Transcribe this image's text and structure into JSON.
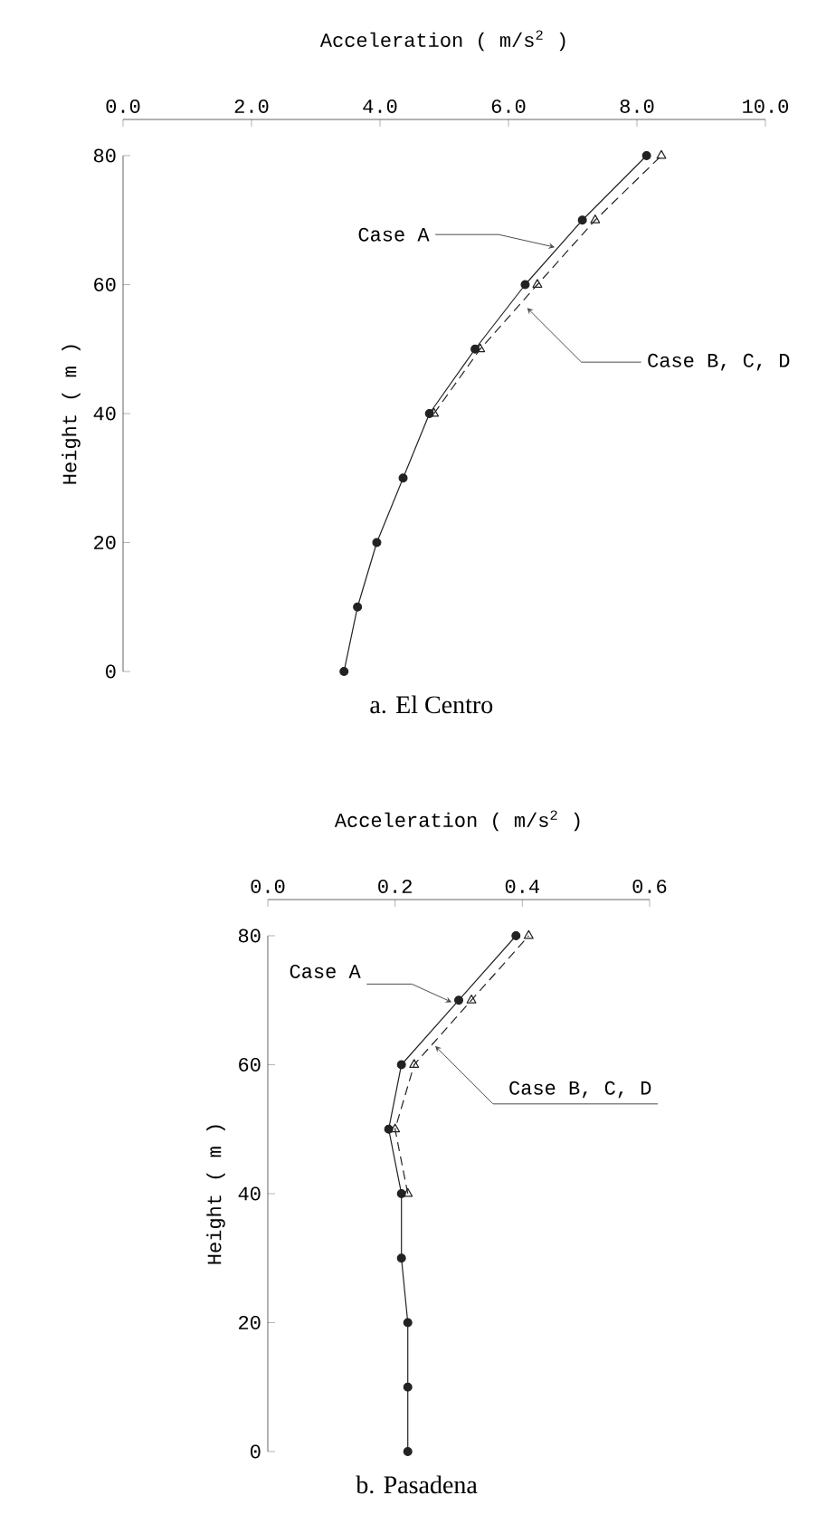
{
  "chart_data": [
    {
      "type": "line",
      "title": "a. El Centro",
      "xlabel": "Acceleration ( m/s$^{2}$ )",
      "ylabel": "Height ( m )",
      "xlim": [
        0,
        10
      ],
      "xticks": [
        {
          "value": 0,
          "label": "0.0"
        },
        {
          "value": 2,
          "label": "2.0"
        },
        {
          "value": 4,
          "label": "4.0"
        },
        {
          "value": 6,
          "label": "6.0"
        },
        {
          "value": 8,
          "label": "8.0"
        },
        {
          "value": 10,
          "label": "10.0"
        }
      ],
      "ylim": [
        0,
        80
      ],
      "yticks": [
        0,
        20,
        40,
        60,
        80
      ],
      "series": [
        {
          "color": "#222222",
          "marker": "circle",
          "line_style": "solid",
          "x": [
            3.44,
            3.65,
            3.95,
            4.36,
            4.77,
            5.48,
            6.26,
            7.15,
            8.15
          ],
          "values": [
            0,
            10,
            20,
            30,
            40,
            50,
            60,
            70,
            80
          ]
        },
        {
          "color": "#222222",
          "marker": "triangle",
          "line_style": "dashed",
          "x": [
            4.84,
            5.56,
            6.45,
            7.35,
            8.38
          ],
          "values": [
            40,
            50,
            60,
            70,
            80
          ]
        }
      ],
      "annotations": [
        {
          "text": "Case A",
          "x": 6.72,
          "y": 65.8
        },
        {
          "text": "Case B, C, D",
          "x": 6.29,
          "y": 56.4
        }
      ]
    },
    {
      "type": "line",
      "title": "b. Pasadena",
      "xlabel": "Acceleration ( m/s$^{2}$ )",
      "ylabel": "Height ( m )",
      "xlim": [
        0,
        0.6
      ],
      "xticks": [
        {
          "value": 0,
          "label": "0.0"
        },
        {
          "value": 0.2,
          "label": "0.2"
        },
        {
          "value": 0.4,
          "label": "0.4"
        },
        {
          "value": 0.6,
          "label": "0.6"
        }
      ],
      "ylim": [
        0,
        80
      ],
      "yticks": [
        0,
        20,
        40,
        60,
        80
      ],
      "series": [
        {
          "color": "#222222",
          "marker": "circle",
          "line_style": "solid",
          "x": [
            0.22,
            0.22,
            0.22,
            0.21,
            0.21,
            0.19,
            0.21,
            0.3,
            0.39
          ],
          "values": [
            0,
            10,
            20,
            30,
            40,
            50,
            60,
            70,
            80
          ]
        },
        {
          "color": "#222222",
          "marker": "triangle",
          "line_style": "dashed",
          "x": [
            0.22,
            0.2,
            0.23,
            0.32,
            0.41
          ],
          "values": [
            40,
            50,
            60,
            70,
            80
          ]
        }
      ],
      "annotations": [
        {
          "text": "Case A",
          "x": 0.289,
          "y": 69.7
        },
        {
          "text": "Case B, C, D",
          "x": 0.263,
          "y": 62.9
        }
      ]
    }
  ]
}
